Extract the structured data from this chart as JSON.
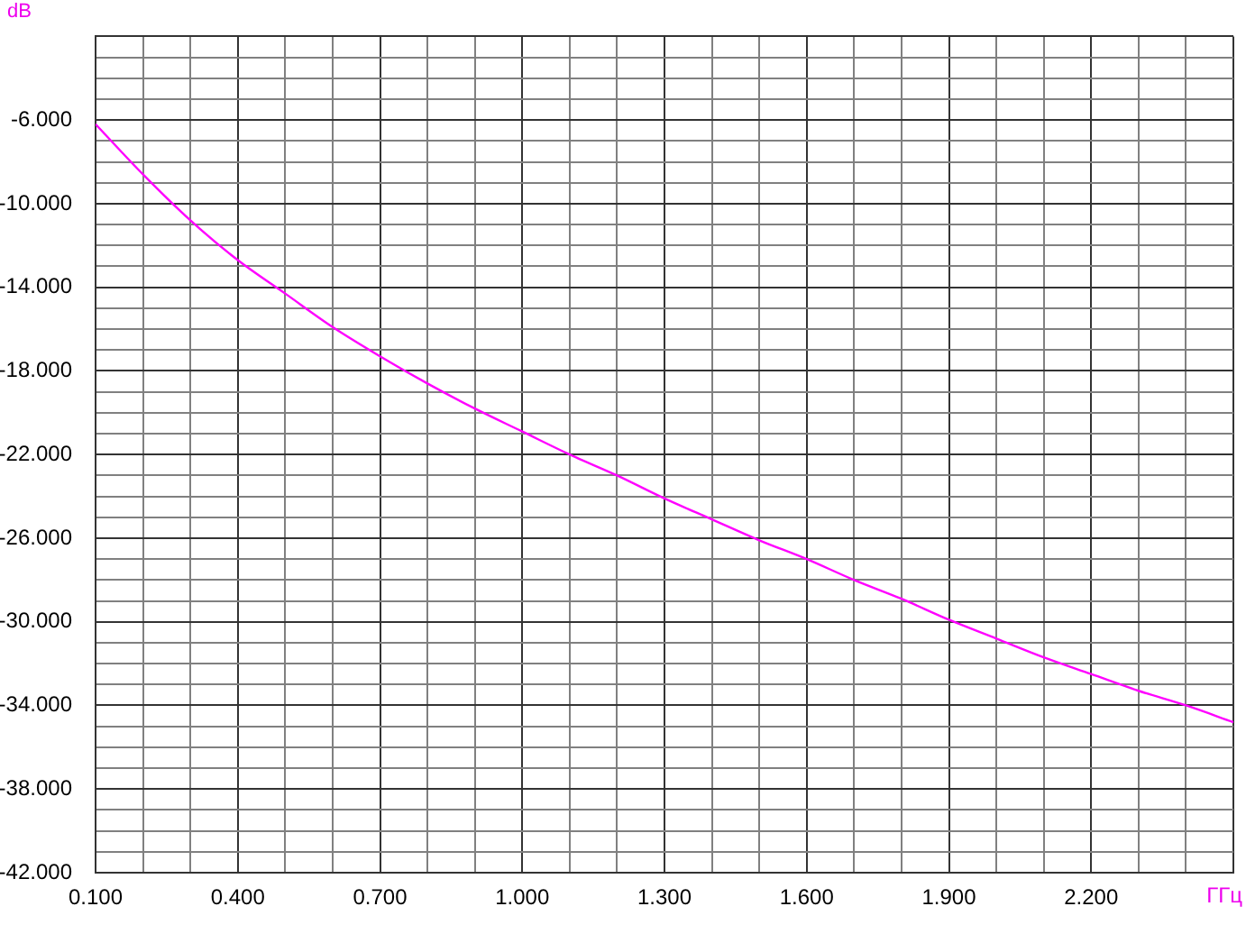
{
  "chart_data": {
    "type": "line",
    "xlabel": "ГГц",
    "ylabel": "dB",
    "x": [
      0.1,
      0.2,
      0.3,
      0.4,
      0.5,
      0.6,
      0.7,
      0.8,
      0.9,
      1.0,
      1.1,
      1.2,
      1.3,
      1.4,
      1.5,
      1.6,
      1.7,
      1.8,
      1.9,
      2.0,
      2.1,
      2.2,
      2.3,
      2.4,
      2.5
    ],
    "values": [
      -6.2,
      -8.6,
      -10.8,
      -12.7,
      -14.3,
      -15.9,
      -17.3,
      -18.6,
      -19.8,
      -20.9,
      -22.0,
      -23.0,
      -24.1,
      -25.1,
      -26.1,
      -27.0,
      -28.0,
      -28.9,
      -29.9,
      -30.8,
      -31.7,
      -32.5,
      -33.3,
      -34.0,
      -34.8
    ],
    "color": "#ff00ff",
    "xlim": [
      0.1,
      2.5
    ],
    "ylim": [
      -42,
      -2
    ],
    "xticks": [
      {
        "value": 0.1,
        "label": "0.100"
      },
      {
        "value": 0.2,
        "label": null
      },
      {
        "value": 0.3,
        "label": null
      },
      {
        "value": 0.4,
        "label": "0.400"
      },
      {
        "value": 0.5,
        "label": null
      },
      {
        "value": 0.6,
        "label": null
      },
      {
        "value": 0.7,
        "label": "0.700"
      },
      {
        "value": 0.8,
        "label": null
      },
      {
        "value": 0.9,
        "label": null
      },
      {
        "value": 1.0,
        "label": "1.000"
      },
      {
        "value": 1.1,
        "label": null
      },
      {
        "value": 1.2,
        "label": null
      },
      {
        "value": 1.3,
        "label": "1.300"
      },
      {
        "value": 1.4,
        "label": null
      },
      {
        "value": 1.5,
        "label": null
      },
      {
        "value": 1.6,
        "label": "1.600"
      },
      {
        "value": 1.7,
        "label": null
      },
      {
        "value": 1.8,
        "label": null
      },
      {
        "value": 1.9,
        "label": "1.900"
      },
      {
        "value": 2.0,
        "label": null
      },
      {
        "value": 2.1,
        "label": null
      },
      {
        "value": 2.2,
        "label": "2.200"
      },
      {
        "value": 2.3,
        "label": null
      },
      {
        "value": 2.4,
        "label": null
      },
      {
        "value": 2.5,
        "label": null
      }
    ],
    "yticks": [
      {
        "value": -42,
        "label": "-42.000"
      },
      {
        "value": -41,
        "label": null
      },
      {
        "value": -40,
        "label": null
      },
      {
        "value": -39,
        "label": null
      },
      {
        "value": -38,
        "label": "-38.000"
      },
      {
        "value": -37,
        "label": null
      },
      {
        "value": -36,
        "label": null
      },
      {
        "value": -35,
        "label": null
      },
      {
        "value": -34,
        "label": "-34.000"
      },
      {
        "value": -33,
        "label": null
      },
      {
        "value": -32,
        "label": null
      },
      {
        "value": -31,
        "label": null
      },
      {
        "value": -30,
        "label": "-30.000"
      },
      {
        "value": -29,
        "label": null
      },
      {
        "value": -28,
        "label": null
      },
      {
        "value": -27,
        "label": null
      },
      {
        "value": -26,
        "label": "-26.000"
      },
      {
        "value": -25,
        "label": null
      },
      {
        "value": -24,
        "label": null
      },
      {
        "value": -23,
        "label": null
      },
      {
        "value": -22,
        "label": "-22.000"
      },
      {
        "value": -21,
        "label": null
      },
      {
        "value": -20,
        "label": null
      },
      {
        "value": -19,
        "label": null
      },
      {
        "value": -18,
        "label": "-18.000"
      },
      {
        "value": -17,
        "label": null
      },
      {
        "value": -16,
        "label": null
      },
      {
        "value": -15,
        "label": null
      },
      {
        "value": -14,
        "label": "-14.000"
      },
      {
        "value": -13,
        "label": null
      },
      {
        "value": -12,
        "label": null
      },
      {
        "value": -11,
        "label": null
      },
      {
        "value": -10,
        "label": "-10.000"
      },
      {
        "value": -9,
        "label": null
      },
      {
        "value": -8,
        "label": null
      },
      {
        "value": -7,
        "label": null
      },
      {
        "value": -6,
        "label": "-6.000"
      },
      {
        "value": -5,
        "label": null
      },
      {
        "value": -4,
        "label": null
      },
      {
        "value": -3,
        "label": null
      },
      {
        "value": -2,
        "label": null
      }
    ],
    "grid": true,
    "marker": "none",
    "line_style": "solid"
  }
}
